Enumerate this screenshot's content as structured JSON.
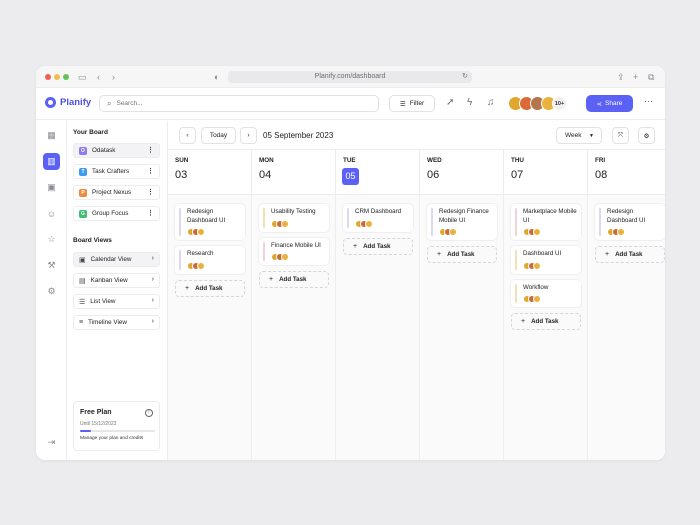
{
  "browser": {
    "url": "Planify.com/dashboard",
    "icons": [
      "sidebar-toggle-icon",
      "back-icon",
      "forward-icon",
      "privacy-icon",
      "reload-icon",
      "share-icon",
      "new-tab-icon",
      "tabs-icon"
    ]
  },
  "app": {
    "name": "Planify",
    "accent": "#5b61f5",
    "search_placeholder": "Search...",
    "filter_label": "Filter",
    "members_more": "10+",
    "share_label": "Share"
  },
  "sidebar": {
    "your_board_title": "Your Board",
    "boards": [
      {
        "label": "Odatask",
        "letter": "O",
        "color": "#8d7cf0"
      },
      {
        "label": "Task Crafters",
        "letter": "T",
        "color": "#3f9bf0"
      },
      {
        "label": "Project Nexus",
        "letter": "P",
        "color": "#f08a3f"
      },
      {
        "label": "Group Focus",
        "letter": "G",
        "color": "#3fbf6f"
      }
    ],
    "board_views_title": "Board Views",
    "views": [
      {
        "label": "Calendar View",
        "icon": "calendar-icon"
      },
      {
        "label": "Kanban View",
        "icon": "kanban-icon"
      },
      {
        "label": "List View",
        "icon": "list-icon"
      },
      {
        "label": "Timeline View",
        "icon": "timeline-icon"
      }
    ],
    "plan": {
      "title": "Free Plan",
      "until": "Until 15/12/2023",
      "manage": "Manage your plan and credits",
      "progress": 0.15
    }
  },
  "toolbar": {
    "today_label": "Today",
    "date": "05 September 2023",
    "view_select": "Week"
  },
  "calendar": {
    "add_task_label": "Add Task",
    "columns": [
      {
        "day": "SUN",
        "date": "03",
        "today": false,
        "cards": [
          {
            "title": "Redesign Dashboard UI",
            "color": "#d9d9f5"
          },
          {
            "title": "Research",
            "color": "#d9d9f5"
          }
        ]
      },
      {
        "day": "MON",
        "date": "04",
        "today": false,
        "cards": [
          {
            "title": "Usability Testing",
            "color": "#f5dfb5"
          },
          {
            "title": "Finance Mobile UI",
            "color": "#f5d0d6"
          }
        ]
      },
      {
        "day": "TUE",
        "date": "05",
        "today": true,
        "cards": [
          {
            "title": "CRM Dashboard",
            "color": "#d9d9f5"
          }
        ]
      },
      {
        "day": "WED",
        "date": "06",
        "today": false,
        "cards": [
          {
            "title": "Redesign Finance Mobile UI",
            "color": "#d9d9f5"
          }
        ]
      },
      {
        "day": "THU",
        "date": "07",
        "today": false,
        "cards": [
          {
            "title": "Marketplace Mobile UI",
            "color": "#f5d0d6"
          },
          {
            "title": "Dashboard UI",
            "color": "#f5dfb5"
          },
          {
            "title": "Workflow",
            "color": "#f5dfb5"
          }
        ]
      },
      {
        "day": "FRI",
        "date": "08",
        "today": false,
        "cards": [
          {
            "title": "Redesign Dashboard UI",
            "color": "#d9d9f5"
          }
        ]
      }
    ]
  }
}
